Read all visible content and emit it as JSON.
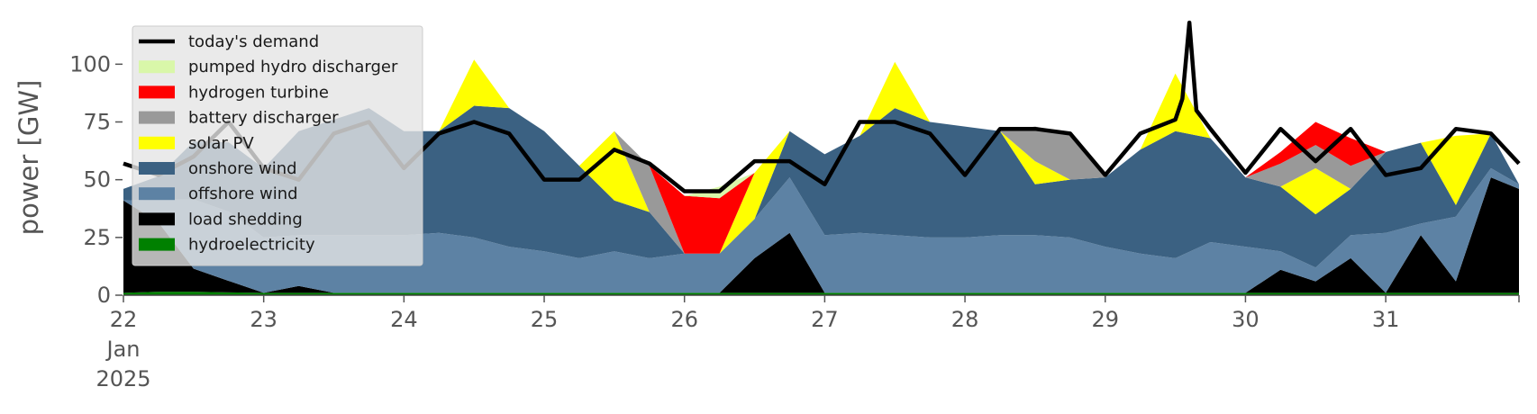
{
  "chart_data": {
    "type": "area",
    "stacked": true,
    "ylabel": "power [GW]",
    "ylim": [
      0,
      120
    ],
    "x_unit": "day (Jan 2025)",
    "xlim": [
      22,
      31.95
    ],
    "x_ticks": [
      {
        "x": 22,
        "lines": [
          "22",
          "Jan",
          "2025"
        ]
      },
      {
        "x": 23,
        "lines": [
          "23"
        ]
      },
      {
        "x": 24,
        "lines": [
          "24"
        ]
      },
      {
        "x": 25,
        "lines": [
          "25"
        ]
      },
      {
        "x": 26,
        "lines": [
          "26"
        ]
      },
      {
        "x": 27,
        "lines": [
          "27"
        ]
      },
      {
        "x": 28,
        "lines": [
          "28"
        ]
      },
      {
        "x": 29,
        "lines": [
          "29"
        ]
      },
      {
        "x": 30,
        "lines": [
          "30"
        ]
      },
      {
        "x": 31,
        "lines": [
          "31"
        ]
      }
    ],
    "y_ticks": [
      0,
      25,
      50,
      75,
      100
    ],
    "grid": false,
    "legend_position": "top-left",
    "legend": [
      {
        "label": "today's demand",
        "kind": "line",
        "color": "#000000"
      },
      {
        "label": "pumped hydro discharger",
        "kind": "patch",
        "color": "#d9f7a9"
      },
      {
        "label": "hydrogen turbine",
        "kind": "patch",
        "color": "#ff0000"
      },
      {
        "label": "battery discharger",
        "kind": "patch",
        "color": "#999999"
      },
      {
        "label": "solar PV",
        "kind": "patch",
        "color": "#ffff00"
      },
      {
        "label": "onshore wind",
        "kind": "patch",
        "color": "#3b6182"
      },
      {
        "label": "offshore wind",
        "kind": "patch",
        "color": "#5d82a4"
      },
      {
        "label": "load shedding",
        "kind": "patch",
        "color": "#000000"
      },
      {
        "label": "hydroelectricity",
        "kind": "patch",
        "color": "#008000"
      }
    ],
    "x": [
      22,
      22.25,
      22.5,
      22.75,
      23,
      23.25,
      23.5,
      23.75,
      24,
      24.25,
      24.5,
      24.75,
      25,
      25.25,
      25.5,
      25.75,
      26,
      26.25,
      26.5,
      26.75,
      27,
      27.25,
      27.5,
      27.75,
      28,
      28.25,
      28.5,
      28.75,
      29,
      29.25,
      29.5,
      29.75,
      30,
      30.25,
      30.5,
      30.75,
      31,
      31.25,
      31.5,
      31.75,
      31.95
    ],
    "stack_order": [
      "hydroelectricity",
      "load shedding",
      "offshore wind",
      "onshore wind",
      "solar PV",
      "battery discharger",
      "hydrogen turbine",
      "pumped hydro discharger"
    ],
    "series": [
      {
        "name": "hydroelectricity",
        "color": "#008000",
        "values": [
          1,
          1.5,
          1.5,
          1.2,
          1,
          1,
          1,
          1,
          1,
          1,
          1,
          1,
          1,
          1,
          1,
          1,
          1,
          1,
          1,
          1,
          1,
          1,
          1,
          1,
          1,
          1,
          1,
          1,
          1,
          1,
          1,
          1,
          1,
          1,
          1,
          1,
          1,
          1,
          1,
          1,
          1
        ]
      },
      {
        "name": "load shedding",
        "color": "#000000",
        "values": [
          40,
          30,
          10,
          5,
          0,
          3,
          0,
          0,
          0,
          0,
          0,
          0,
          0,
          0,
          0,
          0,
          0,
          0,
          15,
          26,
          0,
          0,
          0,
          0,
          0,
          0,
          0,
          0,
          0,
          0,
          0,
          0,
          0,
          10,
          5,
          15,
          0,
          25,
          5,
          50,
          45
        ]
      },
      {
        "name": "offshore wind",
        "color": "#5d82a4",
        "values": [
          0,
          10,
          30,
          30,
          24,
          22,
          25,
          25,
          25,
          26,
          24,
          20,
          18,
          15,
          18,
          15,
          17,
          17,
          17,
          24,
          25,
          26,
          25,
          24,
          24,
          25,
          25,
          24,
          20,
          17,
          15,
          22,
          20,
          8,
          6,
          10,
          26,
          5,
          28,
          4,
          2
        ]
      },
      {
        "name": "onshore wind",
        "color": "#3b6182",
        "values": [
          5,
          10,
          25,
          30,
          30,
          45,
          50,
          55,
          45,
          44,
          57,
          60,
          52,
          40,
          22,
          20,
          0,
          0,
          0,
          20,
          35,
          42,
          55,
          50,
          48,
          45,
          22,
          25,
          30,
          45,
          55,
          45,
          30,
          28,
          23,
          20,
          35,
          35,
          5,
          15,
          0
        ]
      },
      {
        "name": "solar PV",
        "color": "#ffff00",
        "values": [
          0,
          0,
          0,
          0,
          0,
          0,
          0,
          0,
          0,
          0,
          20,
          0,
          0,
          0,
          30,
          0,
          0,
          0,
          20,
          0,
          0,
          0,
          20,
          0,
          0,
          0,
          10,
          0,
          0,
          0,
          25,
          0,
          0,
          0,
          20,
          0,
          0,
          0,
          30,
          0,
          0
        ]
      },
      {
        "name": "battery discharger",
        "color": "#999999",
        "values": [
          0,
          0,
          0,
          0,
          0,
          0,
          0,
          0,
          0,
          0,
          0,
          0,
          0,
          0,
          0,
          20,
          0,
          0,
          0,
          0,
          0,
          0,
          0,
          0,
          0,
          0,
          15,
          20,
          0,
          0,
          0,
          0,
          0,
          10,
          10,
          10,
          0,
          0,
          0,
          0,
          0
        ]
      },
      {
        "name": "hydrogen turbine",
        "color": "#ff0000",
        "values": [
          0,
          0,
          0,
          0,
          0,
          0,
          0,
          0,
          0,
          0,
          0,
          0,
          0,
          0,
          0,
          0,
          25,
          24,
          0,
          0,
          0,
          0,
          0,
          0,
          0,
          0,
          0,
          0,
          0,
          0,
          0,
          0,
          0,
          5,
          10,
          12,
          0,
          0,
          0,
          0,
          0
        ]
      },
      {
        "name": "pumped hydro discharger",
        "color": "#d9f7a9",
        "values": [
          0,
          0,
          0,
          0,
          0,
          0,
          0,
          0,
          0,
          0,
          0,
          0,
          0,
          0,
          0,
          0,
          0,
          5,
          0,
          0,
          0,
          0,
          0,
          0,
          0,
          0,
          0,
          0,
          0,
          0,
          0,
          0,
          0,
          0,
          0,
          0,
          0,
          0,
          0,
          0,
          0
        ]
      }
    ],
    "demand_line": {
      "name": "today's demand",
      "color": "#000000",
      "x": [
        22,
        22.25,
        22.5,
        22.75,
        23,
        23.25,
        23.5,
        23.75,
        24,
        24.25,
        24.5,
        24.75,
        25,
        25.25,
        25.5,
        25.75,
        26,
        26.25,
        26.5,
        26.75,
        27,
        27.25,
        27.5,
        27.75,
        28,
        28.25,
        28.5,
        28.75,
        29,
        29.25,
        29.5,
        29.55,
        29.6,
        29.65,
        29.75,
        30,
        30.25,
        30.5,
        30.75,
        31,
        31.25,
        31.5,
        31.75,
        31.95
      ],
      "values": [
        57,
        52,
        60,
        75,
        55,
        50,
        70,
        75,
        55,
        70,
        75,
        70,
        50,
        50,
        63,
        57,
        45,
        45,
        58,
        58,
        48,
        75,
        75,
        70,
        52,
        72,
        72,
        70,
        52,
        70,
        76,
        85,
        118,
        80,
        72,
        53,
        72,
        58,
        72,
        52,
        55,
        72,
        70,
        57
      ]
    }
  }
}
